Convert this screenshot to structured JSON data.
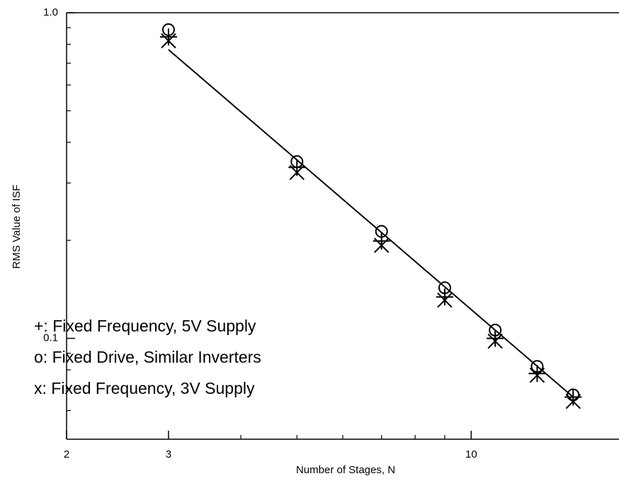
{
  "chart_data": {
    "type": "scatter",
    "xlabel": "Number of Stages, N",
    "ylabel": "RMS Value of ISF",
    "log_x": true,
    "log_y": true,
    "xlim": [
      2,
      18
    ],
    "ylim": [
      0.049,
      1
    ],
    "xticks": [
      2,
      3,
      10
    ],
    "yticks": [
      {
        "value": 0.1,
        "label": "0.1"
      },
      {
        "value": 1,
        "label": "1.0"
      }
    ],
    "xminor_ticks": [
      4,
      5,
      6,
      7,
      8,
      9
    ],
    "yminor_ticks": [
      0.06,
      0.07,
      0.08,
      0.09,
      0.2,
      0.3,
      0.4,
      0.5,
      0.6,
      0.7,
      0.8,
      0.9
    ],
    "color": "#000000",
    "x": [
      3,
      5,
      7,
      9,
      11,
      13,
      15
    ],
    "series": [
      {
        "name": "+: Fixed Frequency, 5V Supply",
        "marker": "+",
        "values": [
          0.843,
          0.335,
          0.199,
          0.134,
          0.1,
          0.078,
          0.066
        ]
      },
      {
        "name": "o: Fixed Drive, Similar Inverters",
        "marker": "o",
        "values": [
          0.887,
          0.349,
          0.213,
          0.143,
          0.106,
          0.082,
          0.067
        ]
      },
      {
        "name": "x: Fixed Frequency, 3V Supply",
        "marker": "x",
        "values": [
          0.82,
          0.323,
          0.193,
          0.131,
          0.098,
          0.077,
          0.064
        ]
      }
    ],
    "fit_line": {
      "x": [
        3,
        15
      ],
      "values": [
        0.77,
        0.066
      ]
    }
  }
}
